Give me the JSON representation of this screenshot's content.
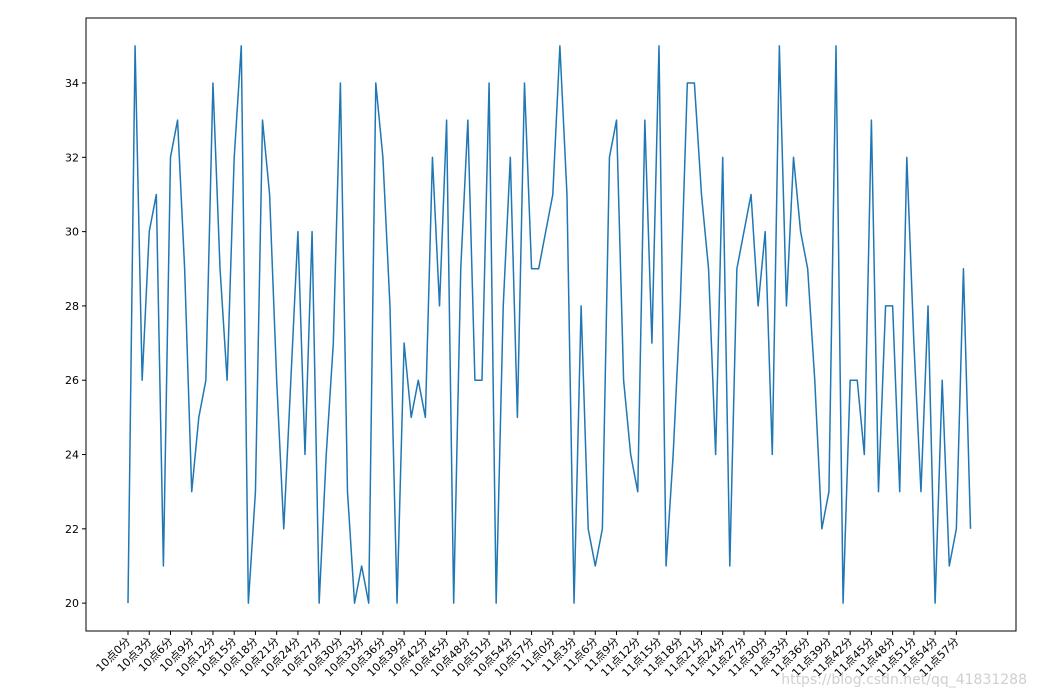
{
  "chart_data": {
    "type": "line",
    "title": "",
    "xlabel": "",
    "ylabel": "",
    "ylim": [
      19.25,
      35.75
    ],
    "y_ticks": [
      20,
      22,
      24,
      26,
      28,
      30,
      32,
      34
    ],
    "grid": false,
    "x": [
      "10点0分",
      "10点1分",
      "10点2分",
      "10点3分",
      "10点4分",
      "10点5分",
      "10点6分",
      "10点7分",
      "10点8分",
      "10点9分",
      "10点10分",
      "10点11分",
      "10点12分",
      "10点13分",
      "10点14分",
      "10点15分",
      "10点16分",
      "10点17分",
      "10点18分",
      "10点19分",
      "10点20分",
      "10点21分",
      "10点22分",
      "10点23分",
      "10点24分",
      "10点25分",
      "10点26分",
      "10点27分",
      "10点28分",
      "10点29分",
      "10点30分",
      "10点31分",
      "10点32分",
      "10点33分",
      "10点34分",
      "10点35分",
      "10点36分",
      "10点37分",
      "10点38分",
      "10点39分",
      "10点40分",
      "10点41分",
      "10点42分",
      "10点43分",
      "10点44分",
      "10点45分",
      "10点46分",
      "10点47分",
      "10点48分",
      "10点49分",
      "10点50分",
      "10点51分",
      "10点52分",
      "10点53分",
      "10点54分",
      "10点55分",
      "10点56分",
      "10点57分",
      "10点58分",
      "10点59分",
      "11点0分",
      "11点1分",
      "11点2分",
      "11点3分",
      "11点4分",
      "11点5分",
      "11点6分",
      "11点7分",
      "11点8分",
      "11点9分",
      "11点10分",
      "11点11分",
      "11点12分",
      "11点13分",
      "11点14分",
      "11点15分",
      "11点16分",
      "11点17分",
      "11点18分",
      "11点19分",
      "11点20分",
      "11点21分",
      "11点22分",
      "11点23分",
      "11点24分",
      "11点25分",
      "11点26分",
      "11点27分",
      "11点28分",
      "11点29分",
      "11点30分",
      "11点31分",
      "11点32分",
      "11点33分",
      "11点34分",
      "11点35分",
      "11点36分",
      "11点37分",
      "11点38分",
      "11点39分",
      "11点40分",
      "11点41分",
      "11点42分",
      "11点43分",
      "11点44分",
      "11点45分",
      "11点46分",
      "11点47分",
      "11点48分",
      "11点49分",
      "11点50分",
      "11点51分",
      "11点52分",
      "11点53分",
      "11点54分",
      "11点55分",
      "11点56分",
      "11点57分",
      "11点58分",
      "11点59分"
    ],
    "x_tick_labels": [
      "10点0分",
      "10点3分",
      "10点6分",
      "10点9分",
      "10点12分",
      "10点15分",
      "10点18分",
      "10点21分",
      "10点24分",
      "10点27分",
      "10点30分",
      "10点33分",
      "10点36分",
      "10点39分",
      "10点42分",
      "10点45分",
      "10点48分",
      "10点51分",
      "10点54分",
      "10点57分",
      "11点0分",
      "11点3分",
      "11点6分",
      "11点9分",
      "11点12分",
      "11点15分",
      "11点18分",
      "11点21分",
      "11点24分",
      "11点27分",
      "11点30分",
      "11点33分",
      "11点36分",
      "11点39分",
      "11点42分",
      "11点45分",
      "11点48分",
      "11点51分",
      "11点54分",
      "11点57分"
    ],
    "series": [
      {
        "color": "#1f77b4",
        "values": [
          20,
          35,
          26,
          30,
          31,
          21,
          32,
          33,
          29,
          23,
          25,
          26,
          34,
          29,
          26,
          32,
          35,
          20,
          23,
          33,
          31,
          26,
          22,
          26,
          30,
          24,
          30,
          20,
          24,
          27,
          34,
          23,
          20,
          21,
          20,
          34,
          32,
          28,
          20,
          27,
          25,
          26,
          25,
          32,
          28,
          33,
          20,
          29,
          33,
          26,
          26,
          34,
          20,
          28,
          32,
          25,
          34,
          29,
          29,
          30,
          31,
          35,
          31,
          20,
          28,
          22,
          21,
          22,
          32,
          33,
          26,
          24,
          23,
          33,
          27,
          35,
          21,
          24,
          28,
          34,
          34,
          31,
          29,
          24,
          32,
          21,
          29,
          30,
          31,
          28,
          30,
          24,
          35,
          28,
          32,
          30,
          29,
          26,
          22,
          23,
          35,
          20,
          26,
          26,
          24,
          33,
          23,
          28,
          28,
          23,
          32,
          27,
          23,
          28,
          20,
          26,
          21,
          22,
          29,
          22
        ]
      }
    ]
  },
  "watermark": "https://blog.csdn.net/qq_41831288"
}
